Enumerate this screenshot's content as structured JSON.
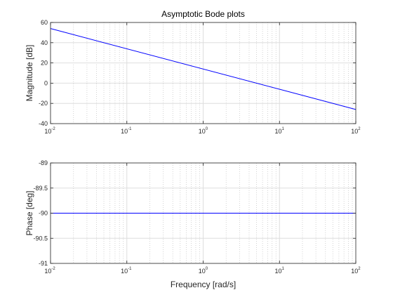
{
  "chart_data": [
    {
      "type": "line",
      "title": "Asymptotic Bode plots",
      "xlabel": "",
      "ylabel": "Magnitude [dB]",
      "xscale": "log",
      "xlim": [
        0.01,
        100
      ],
      "ylim": [
        -40,
        60
      ],
      "yticks": [
        -40,
        -20,
        0,
        20,
        40,
        60
      ],
      "yticklabels": [
        "-40",
        "-20",
        "0",
        "20",
        "40",
        "60"
      ],
      "xticks": [
        0.01,
        0.1,
        1,
        10,
        100
      ],
      "xtick_exponents": [
        "-2",
        "-1",
        "0",
        "1",
        "2"
      ],
      "grid": true,
      "series": [
        {
          "x": [
            0.01,
            100
          ],
          "y": [
            54,
            -26
          ],
          "color": "#0000ff"
        }
      ]
    },
    {
      "type": "line",
      "title": "",
      "xlabel": "Frequency [rad/s]",
      "ylabel": "Phase [deg]",
      "xscale": "log",
      "xlim": [
        0.01,
        100
      ],
      "ylim": [
        -91,
        -89
      ],
      "yticks": [
        -91,
        -90.5,
        -90,
        -89.5,
        -89
      ],
      "yticklabels": [
        "-91",
        "-90.5",
        "-90",
        "-89.5",
        "-89"
      ],
      "xticks": [
        0.01,
        0.1,
        1,
        10,
        100
      ],
      "xtick_exponents": [
        "-2",
        "-1",
        "0",
        "1",
        "2"
      ],
      "grid": true,
      "series": [
        {
          "x": [
            0.01,
            100
          ],
          "y": [
            -90,
            -90
          ],
          "color": "#0000ff"
        }
      ]
    }
  ]
}
